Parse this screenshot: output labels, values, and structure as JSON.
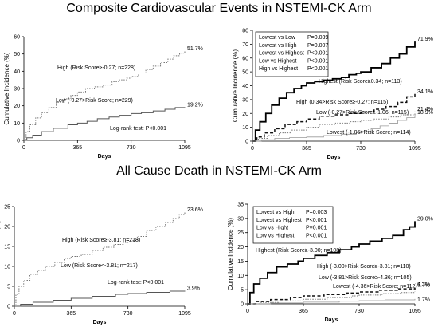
{
  "section_titles": {
    "top": "Composite Cardiovascular Events in NSTEMI-CK Arm",
    "bottom": "All Cause Death in NSTEMI-CK Arm"
  },
  "chart_data": [
    {
      "id": "cv-two-group",
      "type": "line",
      "xlabel": "Days",
      "ylabel": "Cumulative Incidence (%)",
      "xlim": [
        0,
        1095
      ],
      "ylim": [
        0,
        60
      ],
      "xticks": [
        0,
        365,
        730,
        1095
      ],
      "yticks": [
        0,
        10,
        20,
        30,
        40,
        50,
        60
      ],
      "note": "Log-rank test:  P<0.001",
      "series": [
        {
          "name": "High (Risk Score≥-0.27; n=228)",
          "style": "dotted",
          "end_label": "51.7%",
          "x": [
            0,
            15,
            40,
            80,
            120,
            170,
            220,
            270,
            320,
            365,
            420,
            480,
            540,
            600,
            650,
            700,
            730,
            780,
            830,
            880,
            930,
            980,
            1020,
            1060,
            1095
          ],
          "y": [
            0,
            5,
            9,
            13,
            16,
            19,
            22,
            24,
            26,
            28,
            30,
            31,
            32,
            34,
            35,
            36,
            37,
            39,
            41,
            43,
            45,
            47,
            49,
            50.5,
            51.7
          ]
        },
        {
          "name": "Low (-0.27>Risk Score; n=229)",
          "style": "solid",
          "end_label": "19.2%",
          "x": [
            0,
            20,
            60,
            120,
            200,
            300,
            365,
            430,
            500,
            580,
            650,
            730,
            800,
            880,
            960,
            1030,
            1095
          ],
          "y": [
            0,
            1.5,
            3,
            5,
            7,
            9,
            10,
            11,
            12.5,
            13.5,
            14.5,
            15.5,
            16,
            17,
            18,
            19,
            19.2
          ]
        }
      ]
    },
    {
      "id": "cv-four-group",
      "type": "line",
      "xlabel": "Days",
      "ylabel": "Cumulative Incidence (%)",
      "xlim": [
        0,
        1095
      ],
      "ylim": [
        0,
        80
      ],
      "xticks": [
        0,
        365,
        730,
        1095
      ],
      "yticks": [
        0,
        10,
        20,
        30,
        40,
        50,
        60,
        70,
        80
      ],
      "pvalues": [
        {
          "comparison": "Lowest vs Low",
          "p": "P=0.039"
        },
        {
          "comparison": "Lowest vs High",
          "p": "P=0.007"
        },
        {
          "comparison": "Lowest vs Highest",
          "p": "P<0.001"
        },
        {
          "comparison": "Low vs Highest",
          "p": "P<0.001"
        },
        {
          "comparison": "High vs Highest",
          "p": "P<0.001"
        }
      ],
      "series": [
        {
          "name": "Highest (Risk Score≥0.34; n=113)",
          "style": "thick",
          "end_label": "71.9%",
          "x": [
            0,
            20,
            50,
            90,
            130,
            180,
            230,
            280,
            330,
            365,
            420,
            480,
            540,
            600,
            650,
            700,
            730,
            800,
            870,
            930,
            990,
            1040,
            1095
          ],
          "y": [
            0,
            8,
            14,
            20,
            26,
            31,
            35,
            38,
            40,
            42,
            43,
            44,
            45,
            46,
            48,
            49,
            50,
            53,
            56,
            60,
            63,
            68,
            71.9
          ]
        },
        {
          "name": "High (0.34>Risk Score≥-0.27; n=115)",
          "style": "dashed",
          "end_label": "34.1%",
          "x": [
            0,
            30,
            80,
            150,
            220,
            300,
            365,
            450,
            550,
            650,
            730,
            820,
            900,
            980,
            1040,
            1095
          ],
          "y": [
            0,
            3,
            6,
            9,
            12,
            14,
            16,
            18,
            19,
            20,
            21,
            23,
            25,
            28,
            32,
            34.1
          ]
        },
        {
          "name": "Low (-0.27>Risk Score≥-1.06; n=115)",
          "style": "dotted",
          "end_label": "21.4%",
          "x": [
            0,
            40,
            100,
            180,
            260,
            365,
            450,
            560,
            660,
            730,
            820,
            920,
            1000,
            1095
          ],
          "y": [
            0,
            2,
            4,
            6,
            8,
            10,
            12,
            13,
            14,
            15,
            16,
            17.5,
            19,
            21.4
          ]
        },
        {
          "name": "Lowest (-1.06>Risk Score; n=114)",
          "style": "thin",
          "end_label": "18.9%",
          "x": [
            0,
            60,
            150,
            250,
            365,
            480,
            600,
            700,
            730,
            800,
            860,
            920,
            980,
            1040,
            1095
          ],
          "y": [
            0,
            1,
            2,
            2.5,
            3,
            4,
            5,
            6,
            7,
            9,
            11,
            13,
            15,
            17,
            18.9
          ]
        }
      ]
    },
    {
      "id": "death-two-group",
      "type": "line",
      "xlabel": "Days",
      "ylabel": "Cumulative Incidence (%)",
      "xlim": [
        0,
        1095
      ],
      "ylim": [
        0,
        25
      ],
      "xticks": [
        0,
        365,
        730,
        1095
      ],
      "yticks": [
        0,
        5,
        10,
        15,
        20,
        25
      ],
      "note": "Log-rank test: P<0.001",
      "series": [
        {
          "name": "High (Risk Score≥-3.81; n=218)",
          "style": "dotted",
          "end_label": "23.6%",
          "x": [
            0,
            10,
            30,
            60,
            100,
            150,
            200,
            260,
            320,
            365,
            430,
            500,
            570,
            640,
            700,
            730,
            790,
            850,
            910,
            970,
            1020,
            1060,
            1095
          ],
          "y": [
            0,
            3,
            5,
            6.5,
            8,
            9,
            10,
            11,
            12,
            12.5,
            13,
            14,
            14.8,
            15.5,
            16,
            16.5,
            17.5,
            19,
            20,
            21,
            22,
            23,
            23.6
          ]
        },
        {
          "name": "Low (Risk Score<-3.81; n=217)",
          "style": "solid",
          "end_label": "3.9%",
          "x": [
            0,
            40,
            120,
            250,
            365,
            500,
            650,
            730,
            850,
            1000,
            1095
          ],
          "y": [
            0,
            0.5,
            1,
            1.5,
            2,
            2.5,
            3,
            3.2,
            3.5,
            3.8,
            3.9
          ]
        }
      ]
    },
    {
      "id": "death-four-group",
      "type": "line",
      "xlabel": "Days",
      "ylabel": "Cumulative Incidence (%)",
      "xlim": [
        0,
        1095
      ],
      "ylim": [
        0,
        35
      ],
      "xticks": [
        0,
        365,
        730,
        1095
      ],
      "yticks": [
        0,
        5,
        10,
        15,
        20,
        25,
        30,
        35
      ],
      "pvalues": [
        {
          "comparison": "Lowest vs High",
          "p": "P=0.003"
        },
        {
          "comparison": "Lowest vs Highest",
          "p": "P<0.001"
        },
        {
          "comparison": "Low vs Hight",
          "p": "P=0.001"
        },
        {
          "comparison": "Low vs Highest",
          "p": "P<0.001"
        }
      ],
      "series": [
        {
          "name": "Highest (Risk Score≥-3.00; n=108)",
          "style": "thick",
          "end_label": "29.0%",
          "x": [
            0,
            15,
            40,
            80,
            130,
            190,
            260,
            330,
            365,
            440,
            520,
            600,
            680,
            730,
            800,
            880,
            950,
            1020,
            1060,
            1095
          ],
          "y": [
            0,
            4,
            7,
            9,
            11,
            13,
            14,
            15,
            16,
            17,
            18,
            19,
            20,
            21,
            22,
            23,
            24,
            26,
            27,
            29
          ]
        },
        {
          "name": "High (-3.00>Risk Score≥-3.81; n=110)",
          "style": "dashed",
          "end_label": "5.7%",
          "x": [
            0,
            50,
            150,
            280,
            365,
            500,
            650,
            730,
            860,
            980,
            1095
          ],
          "y": [
            0,
            0.8,
            1.5,
            2.2,
            2.8,
            3.3,
            3.8,
            4.2,
            4.8,
            5.3,
            5.7
          ]
        },
        {
          "name": "Low (-3.81>Risk Score≥-4.36; n=105)",
          "style": "dotted",
          "end_label": "4.3%",
          "x": [
            0,
            80,
            200,
            365,
            520,
            680,
            730,
            880,
            1000,
            1095
          ],
          "y": [
            0,
            0.5,
            1,
            1.6,
            2.2,
            2.8,
            3.1,
            3.6,
            4,
            4.3
          ]
        },
        {
          "name": "Lowest (-4.36>Risk Score; n=112)",
          "style": "thin",
          "end_label": "1.7%",
          "x": [
            0,
            150,
            365,
            600,
            730,
            900,
            1095
          ],
          "y": [
            0,
            0.3,
            0.6,
            0.9,
            1.1,
            1.4,
            1.7
          ]
        }
      ]
    }
  ]
}
